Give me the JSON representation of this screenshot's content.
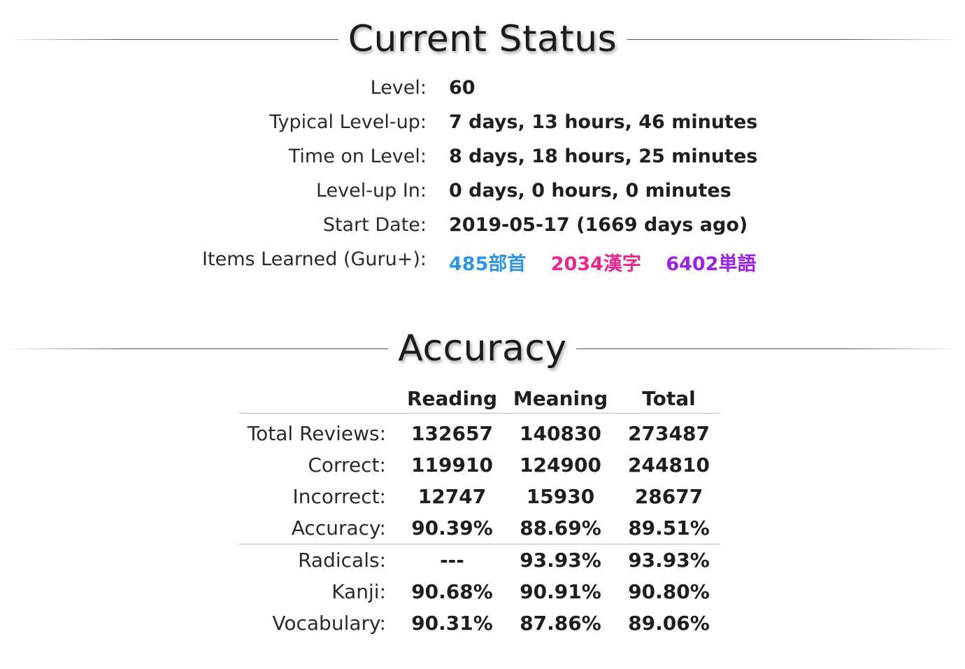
{
  "status": {
    "title": "Current Status",
    "rows": [
      {
        "label": "Level:",
        "value": "60"
      },
      {
        "label": "Typical Level-up:",
        "value": "7 days, 13 hours, 46 minutes"
      },
      {
        "label": "Time on Level:",
        "value": "8 days, 18 hours, 25 minutes"
      },
      {
        "label": "Level-up In:",
        "value": "0 days, 0 hours, 0 minutes"
      },
      {
        "label": "Start Date:",
        "value": "2019-05-17 (1669 days ago)"
      }
    ],
    "items_learned": {
      "label": "Items Learned (Guru+):",
      "radicals": "485部首",
      "kanji": "2034漢字",
      "vocabulary": "6402単語"
    }
  },
  "accuracy": {
    "title": "Accuracy",
    "headers": {
      "reading": "Reading",
      "meaning": "Meaning",
      "total": "Total"
    },
    "rows": [
      {
        "label": "Total Reviews:",
        "reading": "132657",
        "meaning": "140830",
        "total": "273487"
      },
      {
        "label": "Correct:",
        "reading": "119910",
        "meaning": "124900",
        "total": "244810"
      },
      {
        "label": "Incorrect:",
        "reading": "12747",
        "meaning": "15930",
        "total": "28677"
      },
      {
        "label": "Accuracy:",
        "reading": "90.39%",
        "meaning": "88.69%",
        "total": "89.51%"
      }
    ],
    "by_type": [
      {
        "label": "Radicals:",
        "reading": "---",
        "meaning": "93.93%",
        "total": "93.93%"
      },
      {
        "label": "Kanji:",
        "reading": "90.68%",
        "meaning": "90.91%",
        "total": "90.80%"
      },
      {
        "label": "Vocabulary:",
        "reading": "90.31%",
        "meaning": "87.86%",
        "total": "89.06%"
      }
    ]
  },
  "colors": {
    "radical": "#2f95e0",
    "kanji": "#e8278f",
    "vocabulary": "#9b22e0"
  }
}
